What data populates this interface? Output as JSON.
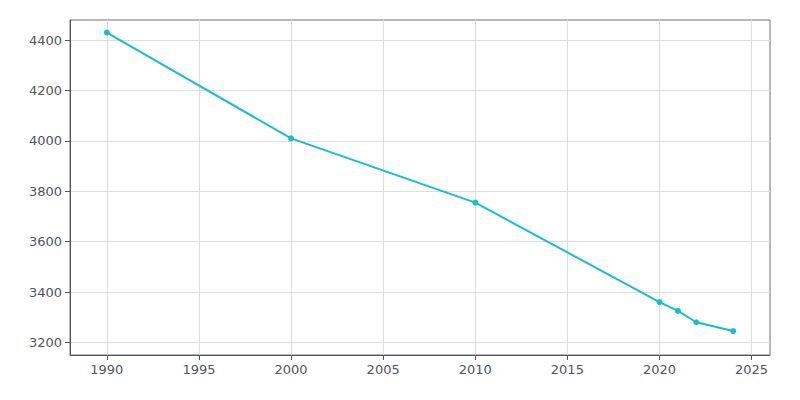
{
  "chart_data": {
    "type": "line",
    "x": [
      1990,
      2000,
      2010,
      2020,
      2021,
      2022,
      2024
    ],
    "values": [
      4430,
      4010,
      3755,
      3360,
      3325,
      3280,
      3245
    ],
    "color": "#17becf",
    "marker": "circle",
    "xlim": [
      1988,
      2026
    ],
    "xticks": [
      1990,
      1995,
      2000,
      2005,
      2010,
      2015,
      2020,
      2025
    ],
    "ylim": [
      3150,
      4480
    ],
    "yticks": [
      3200,
      3400,
      3600,
      3800,
      4000,
      4200,
      4400
    ],
    "grid": true
  }
}
